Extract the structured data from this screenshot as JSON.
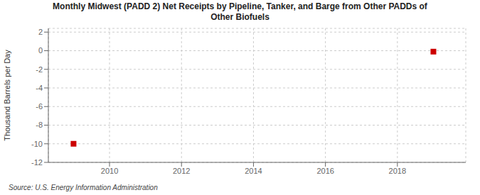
{
  "chart_data": {
    "type": "scatter",
    "title": "Monthly Midwest (PADD 2) Net Receipts by Pipeline, Tanker, and Barge from Other PADDs of\nOther Biofuels",
    "ylabel": "Thousand Barrels per Day",
    "annotations": [
      "Source: U.S. Energy Information Administration"
    ],
    "x": [
      2009.0,
      2019.0
    ],
    "values": [
      -10.0,
      -0.1
    ],
    "color": "#cc0000",
    "marker": "square",
    "xlim": [
      2008.3,
      2019.9
    ],
    "ylim": [
      -12,
      2.4
    ],
    "xticks": [
      2010,
      2012,
      2014,
      2016,
      2018
    ],
    "yticks": [
      2,
      0,
      -2,
      -4,
      -6,
      -8,
      -10,
      -12
    ],
    "grid": true
  }
}
